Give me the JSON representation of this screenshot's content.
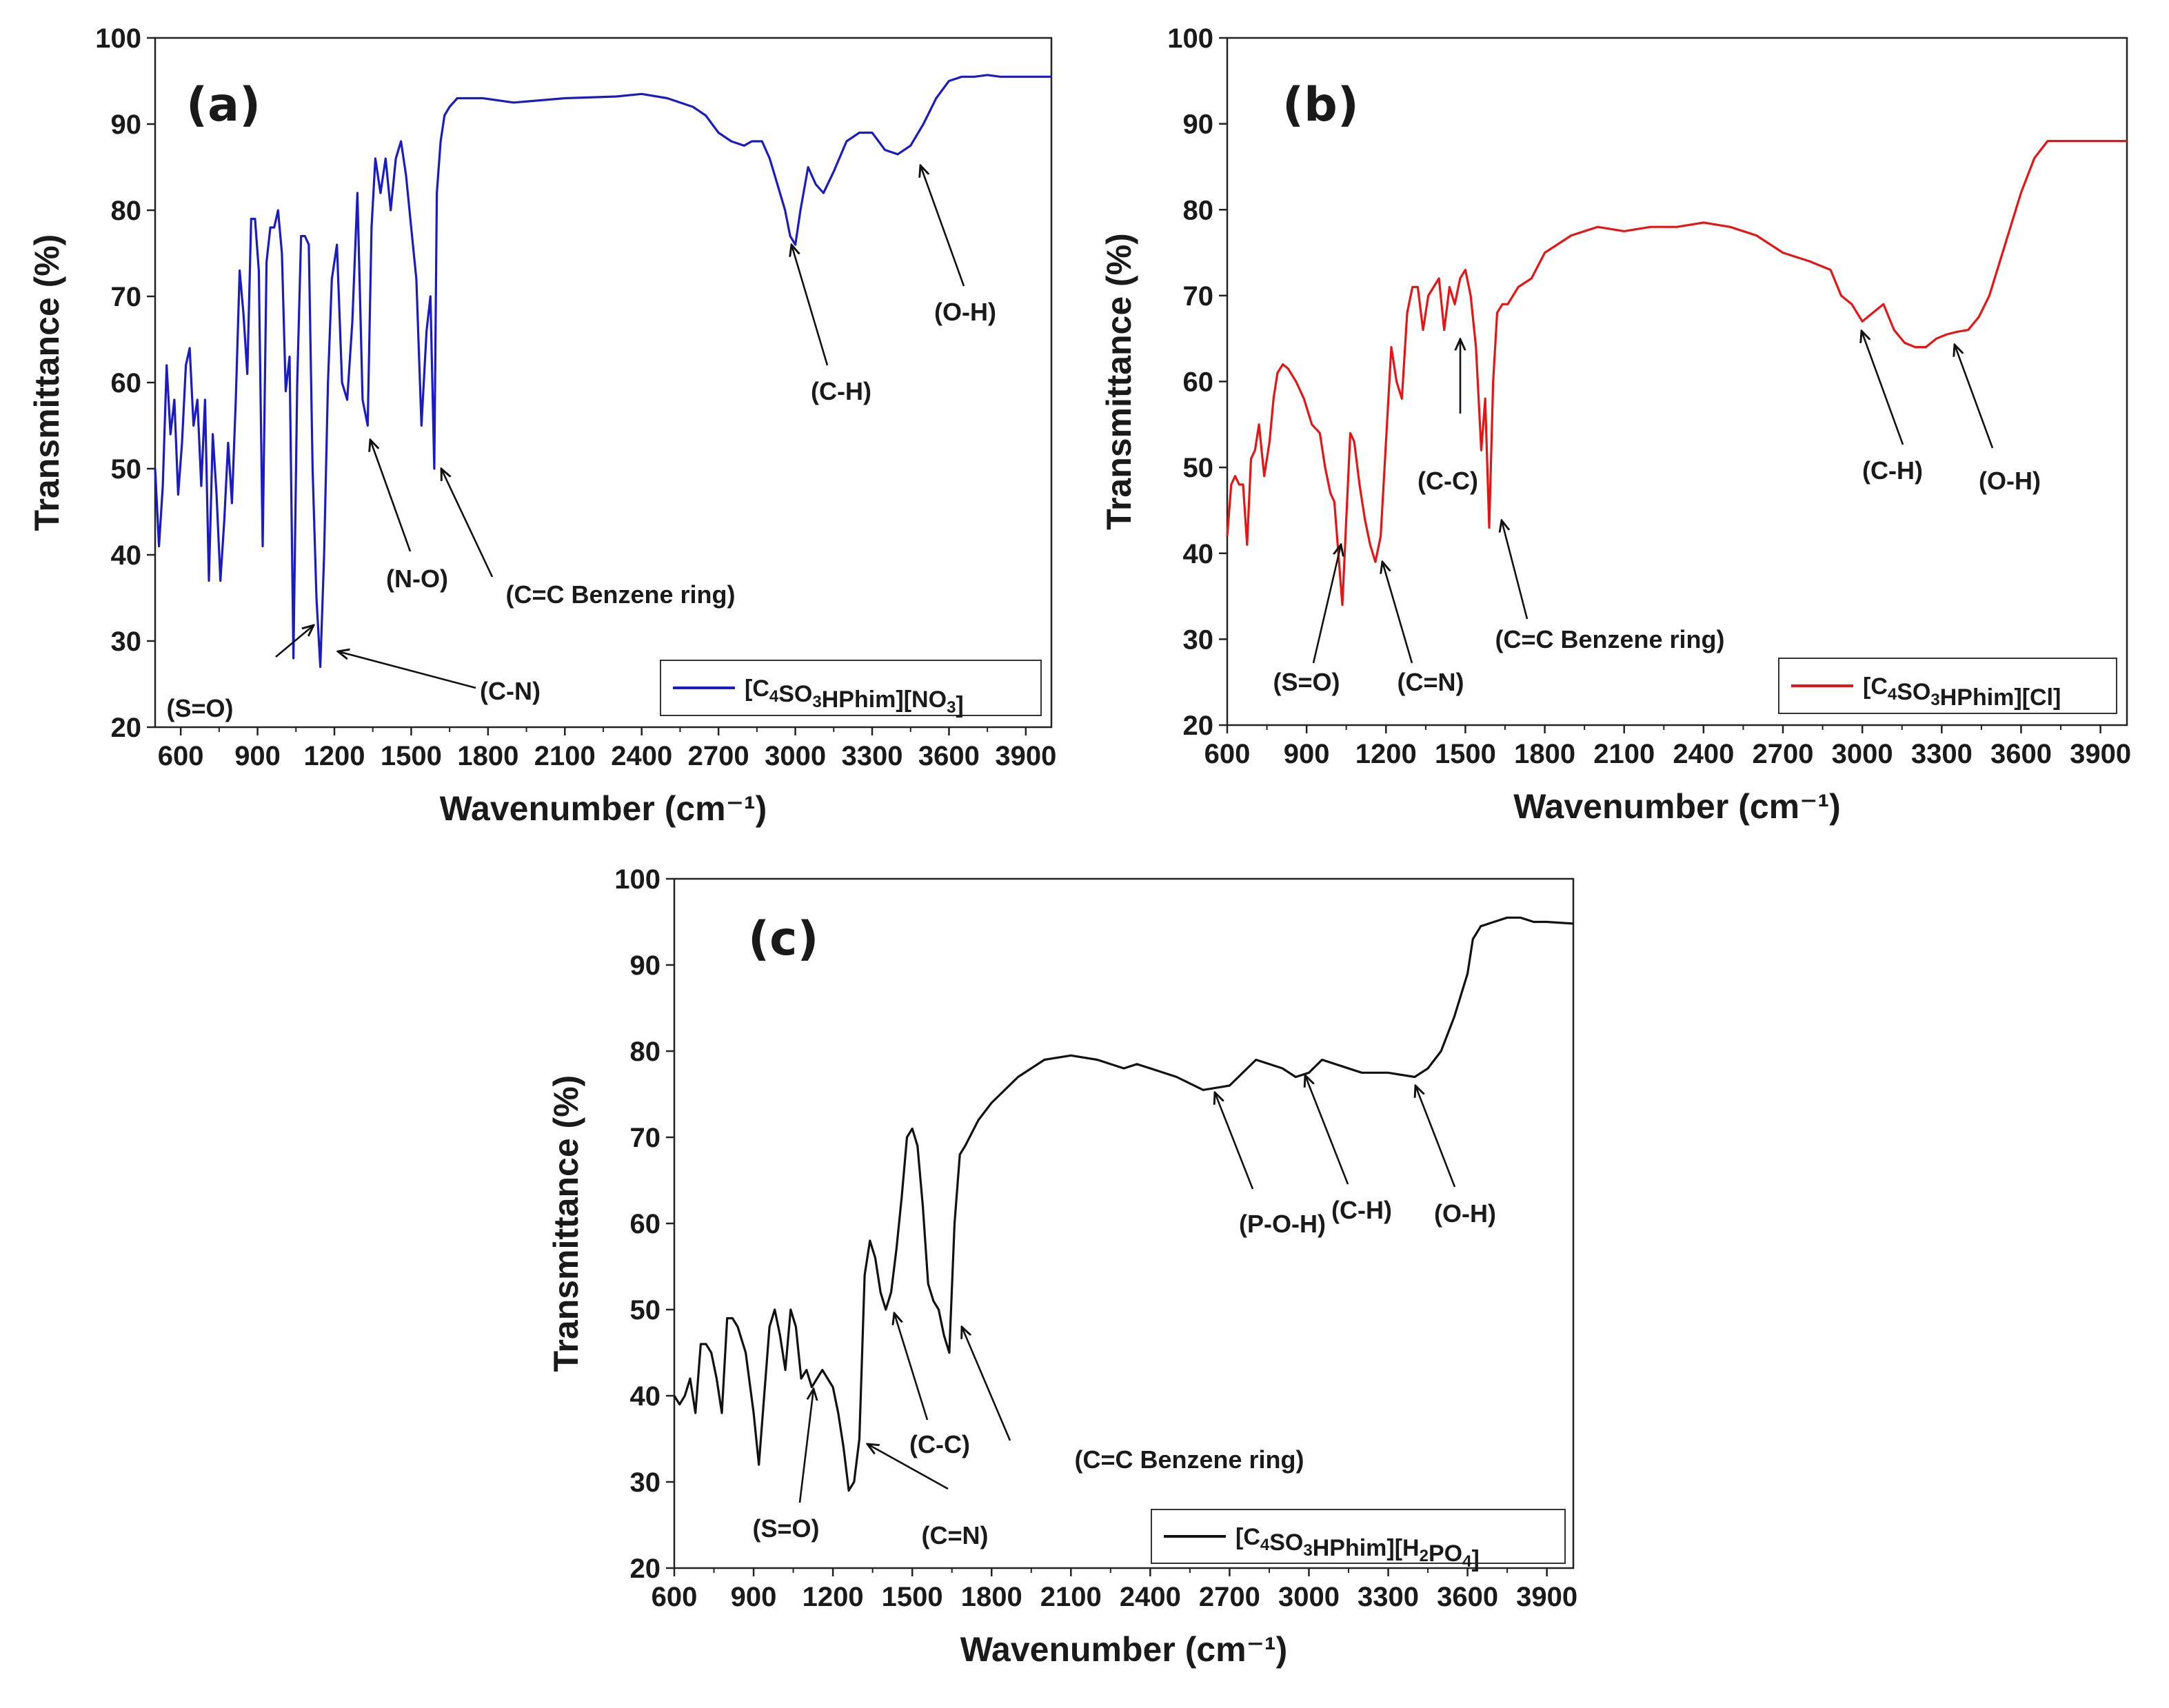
{
  "chart_data": [
    {
      "id": "a",
      "type": "line",
      "panel_label": "(a)",
      "xlabel": "Wavenumber (cm⁻¹)",
      "ylabel": "Transmittance (%)",
      "xlim": [
        500,
        4000
      ],
      "ylim": [
        20,
        100
      ],
      "x_ticks": [
        600,
        900,
        1200,
        1500,
        1800,
        2100,
        2400,
        2700,
        3000,
        3300,
        3600,
        3900
      ],
      "y_ticks": [
        20,
        30,
        40,
        50,
        60,
        70,
        80,
        90,
        100
      ],
      "legend": {
        "position": "bottom-right",
        "parts": [
          [
            "[C",
            ""
          ],
          [
            "4",
            "sub"
          ],
          [
            "SO",
            ""
          ],
          [
            "3",
            "sub"
          ],
          [
            "HPhim][NO",
            ""
          ],
          [
            "3",
            "sub"
          ],
          [
            "]",
            ""
          ]
        ]
      },
      "series": [
        {
          "name": "[C4SO3HPhim][NO3]",
          "color": "#1b1bc4",
          "x": [
            500,
            515,
            530,
            545,
            560,
            575,
            590,
            605,
            620,
            635,
            650,
            665,
            680,
            695,
            710,
            725,
            740,
            755,
            770,
            785,
            800,
            815,
            830,
            845,
            860,
            875,
            890,
            905,
            920,
            935,
            950,
            965,
            980,
            995,
            1010,
            1025,
            1040,
            1055,
            1070,
            1085,
            1100,
            1115,
            1130,
            1145,
            1160,
            1175,
            1190,
            1210,
            1230,
            1250,
            1270,
            1290,
            1310,
            1330,
            1345,
            1360,
            1380,
            1400,
            1420,
            1440,
            1460,
            1480,
            1500,
            1520,
            1540,
            1560,
            1575,
            1590,
            1600,
            1615,
            1630,
            1650,
            1680,
            1720,
            1780,
            1900,
            2100,
            2300,
            2400,
            2500,
            2600,
            2650,
            2700,
            2750,
            2800,
            2830,
            2870,
            2900,
            2930,
            2960,
            2980,
            3000,
            3020,
            3050,
            3080,
            3110,
            3150,
            3200,
            3250,
            3300,
            3350,
            3400,
            3450,
            3500,
            3550,
            3600,
            3650,
            3700,
            3750,
            3800,
            3850,
            3900,
            3950,
            4000
          ],
          "y": [
            50,
            41,
            48,
            62,
            54,
            58,
            47,
            53,
            62,
            64,
            55,
            58,
            48,
            58,
            37,
            54,
            47,
            37,
            44,
            53,
            46,
            58,
            73,
            68,
            61,
            79,
            79,
            73,
            41,
            74,
            78,
            78,
            80,
            75,
            59,
            63,
            28,
            60,
            77,
            77,
            76,
            50,
            35,
            27,
            40,
            60,
            72,
            76,
            60,
            58,
            67,
            82,
            58,
            55,
            78,
            86,
            82,
            86,
            80,
            86,
            88,
            84,
            78,
            72,
            55,
            66,
            70,
            50,
            82,
            88,
            91,
            92,
            93,
            93,
            93,
            92.5,
            93,
            93.2,
            93.5,
            93,
            92,
            91,
            89,
            88,
            87.5,
            88,
            88,
            86,
            83,
            80,
            77,
            76,
            80,
            85,
            83,
            82,
            84.5,
            88,
            89,
            89,
            87,
            86.5,
            87.5,
            90,
            93,
            95,
            95.5,
            95.5,
            95.7,
            95.5,
            95.5,
            95.5,
            95.5,
            95.5
          ]
        }
      ],
      "annotations": [
        {
          "text": "(S=O)"
        },
        {
          "text": "(C-N)"
        },
        {
          "text": "(N-O)"
        },
        {
          "text": "(C=C Benzene ring)"
        },
        {
          "text": "(C-H)"
        },
        {
          "text": "(O-H)"
        }
      ]
    },
    {
      "id": "b",
      "type": "line",
      "panel_label": "(b)",
      "xlabel": "Wavenumber (cm⁻¹)",
      "ylabel": "Transmittance (%)",
      "xlim": [
        600,
        4000
      ],
      "ylim": [
        20,
        100
      ],
      "x_ticks": [
        600,
        900,
        1200,
        1500,
        1800,
        2100,
        2400,
        2700,
        3000,
        3300,
        3600,
        3900
      ],
      "y_ticks": [
        20,
        30,
        40,
        50,
        60,
        70,
        80,
        90,
        100
      ],
      "legend": {
        "position": "bottom-right",
        "parts": [
          [
            "[C",
            ""
          ],
          [
            "4",
            "sub"
          ],
          [
            "SO",
            ""
          ],
          [
            "3",
            "sub"
          ],
          [
            "HPhim][Cl]",
            ""
          ]
        ]
      },
      "series": [
        {
          "name": "[C4SO3HPhim][Cl]",
          "color": "#e81414",
          "x": [
            600,
            615,
            630,
            645,
            660,
            675,
            690,
            705,
            720,
            740,
            760,
            775,
            790,
            810,
            830,
            860,
            890,
            920,
            950,
            970,
            990,
            1005,
            1020,
            1035,
            1050,
            1065,
            1080,
            1100,
            1120,
            1140,
            1160,
            1180,
            1200,
            1220,
            1240,
            1260,
            1280,
            1300,
            1320,
            1340,
            1360,
            1380,
            1400,
            1420,
            1440,
            1460,
            1480,
            1500,
            1520,
            1540,
            1560,
            1575,
            1590,
            1605,
            1620,
            1640,
            1660,
            1700,
            1750,
            1800,
            1900,
            2000,
            2100,
            2200,
            2300,
            2400,
            2500,
            2600,
            2700,
            2800,
            2880,
            2920,
            2960,
            3000,
            3040,
            3080,
            3120,
            3160,
            3200,
            3240,
            3280,
            3320,
            3360,
            3400,
            3440,
            3480,
            3520,
            3560,
            3600,
            3650,
            3700,
            3800,
            3900,
            4000
          ],
          "y": [
            42,
            48,
            49,
            48,
            48,
            41,
            51,
            52,
            55,
            49,
            53,
            58,
            61,
            62,
            61.5,
            60,
            58,
            55,
            54,
            50,
            47,
            46,
            40,
            34,
            44,
            54,
            53,
            48,
            44,
            41,
            39,
            42,
            53,
            64,
            60,
            58,
            68,
            71,
            71,
            66,
            70,
            71,
            72,
            66,
            71,
            69,
            72,
            73,
            70,
            64,
            52,
            58,
            43,
            60,
            68,
            69,
            69,
            71,
            72,
            75,
            77,
            78,
            77.5,
            78,
            78,
            78.5,
            78,
            77,
            75,
            74,
            73,
            70,
            69,
            67,
            68,
            69,
            66,
            64.5,
            64,
            64,
            65,
            65.5,
            65.8,
            66,
            67.5,
            70,
            74,
            78,
            82,
            86,
            88,
            88,
            88,
            88
          ]
        }
      ],
      "annotations": [
        {
          "text": "(S=O)"
        },
        {
          "text": "(C=N)"
        },
        {
          "text": "(C-C)"
        },
        {
          "text": "(C=C Benzene ring)"
        },
        {
          "text": "(C-H)"
        },
        {
          "text": "(O-H)"
        }
      ]
    },
    {
      "id": "c",
      "type": "line",
      "panel_label": "(c)",
      "xlabel": "Wavenumber (cm⁻¹)",
      "ylabel": "Transmittance (%)",
      "xlim": [
        600,
        4000
      ],
      "ylim": [
        20,
        100
      ],
      "x_ticks": [
        600,
        900,
        1200,
        1500,
        1800,
        2100,
        2400,
        2700,
        3000,
        3300,
        3600,
        3900
      ],
      "y_ticks": [
        20,
        30,
        40,
        50,
        60,
        70,
        80,
        90,
        100
      ],
      "legend": {
        "position": "bottom-right",
        "parts": [
          [
            "[C",
            ""
          ],
          [
            "4",
            "sub"
          ],
          [
            "SO",
            ""
          ],
          [
            "3",
            "sub"
          ],
          [
            "HPhim][H",
            ""
          ],
          [
            "2",
            "sub"
          ],
          [
            "PO",
            ""
          ],
          [
            "4",
            "sub"
          ],
          [
            "]",
            ""
          ]
        ]
      },
      "series": [
        {
          "name": "[C4SO3HPhim][H2PO4]",
          "color": "#111111",
          "x": [
            600,
            620,
            640,
            660,
            680,
            700,
            720,
            740,
            760,
            780,
            800,
            820,
            840,
            870,
            900,
            920,
            940,
            960,
            980,
            1000,
            1020,
            1040,
            1060,
            1080,
            1100,
            1120,
            1140,
            1160,
            1180,
            1200,
            1220,
            1240,
            1260,
            1280,
            1300,
            1320,
            1340,
            1360,
            1380,
            1400,
            1420,
            1440,
            1460,
            1480,
            1500,
            1520,
            1540,
            1560,
            1580,
            1600,
            1620,
            1640,
            1660,
            1680,
            1700,
            1750,
            1800,
            1900,
            2000,
            2100,
            2200,
            2300,
            2350,
            2400,
            2500,
            2600,
            2700,
            2800,
            2900,
            2950,
            3000,
            3050,
            3100,
            3200,
            3300,
            3400,
            3450,
            3500,
            3550,
            3600,
            3620,
            3650,
            3700,
            3750,
            3800,
            3850,
            3900,
            4000
          ],
          "y": [
            40,
            39,
            40,
            42,
            38,
            46,
            46,
            45,
            42,
            38,
            49,
            49,
            48,
            45,
            38,
            32,
            40,
            48,
            50,
            47,
            43,
            50,
            48,
            42,
            43,
            41,
            42,
            43,
            42,
            41,
            38,
            34,
            29,
            30,
            35,
            54,
            58,
            56,
            52,
            50,
            52,
            57,
            63,
            70,
            71,
            69,
            62,
            53,
            51,
            50,
            47,
            45,
            60,
            68,
            69,
            72,
            74,
            77,
            79,
            79.5,
            79,
            78,
            78.5,
            78,
            77,
            75.5,
            76,
            79,
            78,
            77,
            77.5,
            79,
            78.5,
            77.5,
            77.5,
            77,
            78,
            80,
            84,
            89,
            93,
            94.5,
            95,
            95.5,
            95.5,
            95,
            95,
            94.8
          ]
        }
      ],
      "annotations": [
        {
          "text": "(S=O)"
        },
        {
          "text": "(C=N)"
        },
        {
          "text": "(C-C)"
        },
        {
          "text": "(C=C Benzene ring)"
        },
        {
          "text": "(P-O-H)"
        },
        {
          "text": "(C-H)"
        },
        {
          "text": "(O-H)"
        }
      ]
    }
  ]
}
